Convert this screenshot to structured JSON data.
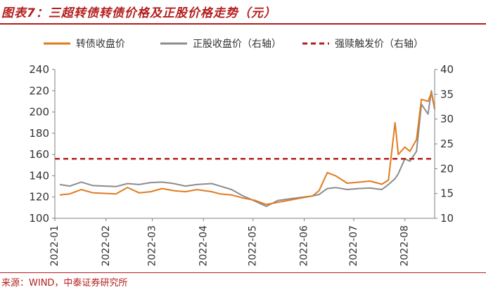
{
  "header": {
    "title": "图表7：三超转债转债价格及正股价格走势（元）"
  },
  "footer": {
    "source": "来源：WIND，中泰证券研究所"
  },
  "colors": {
    "bond": "#e07b1f",
    "stock": "#8c8c8c",
    "strike": "#b41e1e",
    "accent": "#b41e1e"
  },
  "chart_data": {
    "type": "line",
    "title": "",
    "x_ticks": [
      "2022-01",
      "2022-02",
      "2022-03",
      "2022-04",
      "2022-05",
      "2022-06",
      "2022-07",
      "2022-08"
    ],
    "x_range": [
      "2022-01",
      "2022-08-19"
    ],
    "y_left": {
      "ticks": [
        100,
        120,
        140,
        160,
        180,
        200,
        220,
        240
      ],
      "range": [
        100,
        240
      ]
    },
    "y_right": {
      "ticks": [
        10,
        15,
        20,
        25,
        30,
        35,
        40
      ],
      "range": [
        10,
        40
      ]
    },
    "legend_position": "top",
    "series": [
      {
        "name": "转债收盘价",
        "axis": "left",
        "color": "#e07b1f",
        "x": [
          "2022-01-04",
          "2022-01-10",
          "2022-01-17",
          "2022-01-24",
          "2022-02-07",
          "2022-02-14",
          "2022-02-21",
          "2022-02-28",
          "2022-03-07",
          "2022-03-14",
          "2022-03-21",
          "2022-03-28",
          "2022-04-06",
          "2022-04-11",
          "2022-04-18",
          "2022-04-25",
          "2022-05-02",
          "2022-05-09",
          "2022-05-16",
          "2022-05-23",
          "2022-05-30",
          "2022-06-06",
          "2022-06-10",
          "2022-06-15",
          "2022-06-20",
          "2022-06-27",
          "2022-07-04",
          "2022-07-11",
          "2022-07-18",
          "2022-07-22",
          "2022-07-26",
          "2022-07-28",
          "2022-08-01",
          "2022-08-04",
          "2022-08-08",
          "2022-08-11",
          "2022-08-15",
          "2022-08-17",
          "2022-08-19"
        ],
        "values": [
          122,
          123,
          127,
          124,
          123,
          129,
          124,
          125,
          128,
          126,
          125,
          127,
          125,
          123,
          122,
          119,
          117,
          113,
          115,
          117,
          119,
          121,
          126,
          143,
          140,
          133,
          134,
          135,
          132,
          136,
          190,
          160,
          167,
          163,
          174,
          212,
          210,
          218,
          203
        ]
      },
      {
        "name": "正股收盘价（右轴）",
        "axis": "right",
        "color": "#8c8c8c",
        "x": [
          "2022-01-04",
          "2022-01-10",
          "2022-01-17",
          "2022-01-24",
          "2022-02-07",
          "2022-02-14",
          "2022-02-21",
          "2022-02-28",
          "2022-03-07",
          "2022-03-14",
          "2022-03-21",
          "2022-03-28",
          "2022-04-06",
          "2022-04-11",
          "2022-04-18",
          "2022-04-25",
          "2022-05-02",
          "2022-05-09",
          "2022-05-16",
          "2022-05-23",
          "2022-05-30",
          "2022-06-06",
          "2022-06-10",
          "2022-06-15",
          "2022-06-20",
          "2022-06-27",
          "2022-07-04",
          "2022-07-11",
          "2022-07-18",
          "2022-07-22",
          "2022-07-26",
          "2022-07-28",
          "2022-08-01",
          "2022-08-04",
          "2022-08-08",
          "2022-08-11",
          "2022-08-15",
          "2022-08-17",
          "2022-08-19"
        ],
        "values": [
          16.8,
          16.5,
          17.3,
          16.6,
          16.4,
          17.0,
          16.8,
          17.2,
          17.3,
          17.0,
          16.5,
          16.8,
          17.0,
          16.5,
          15.8,
          14.5,
          13.5,
          12.4,
          13.6,
          13.9,
          14.2,
          14.5,
          14.8,
          16.0,
          16.2,
          15.8,
          16.0,
          16.1,
          15.8,
          16.8,
          18.0,
          19.0,
          22.0,
          21.5,
          23.5,
          33.0,
          31.0,
          35.7,
          32.0
        ]
      },
      {
        "name": "强赎触发价（右轴）",
        "axis": "right",
        "color": "#b41e1e",
        "style": "dashed",
        "x": [
          "2022-01-01",
          "2022-08-19"
        ],
        "values": [
          22.0,
          22.0
        ]
      }
    ]
  }
}
